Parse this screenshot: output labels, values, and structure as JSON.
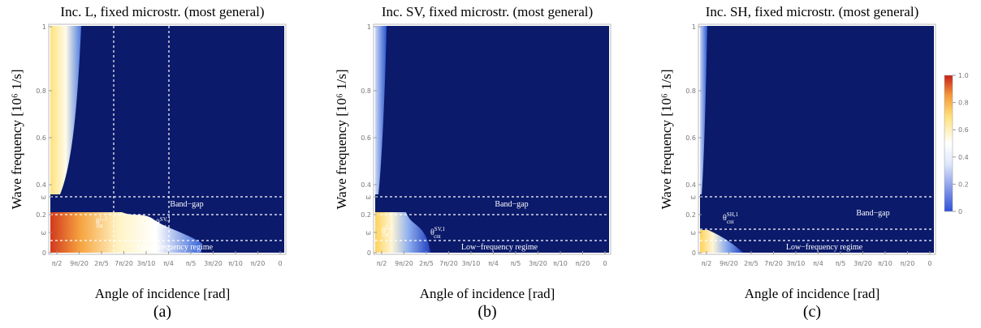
{
  "axes": {
    "y_ticks": [
      "0",
      "ω",
      "0.2",
      "ω",
      "0.4",
      "0.6",
      "0.8",
      "1"
    ],
    "x_ticks": [
      "π/2",
      "9π/20",
      "2π/5",
      "7π/20",
      "3π/10",
      "π/4",
      "π/5",
      "3π/20",
      "π/10",
      "π/20",
      "0"
    ]
  },
  "panels": [
    {
      "title": "Inc. L, fixed microstr. (most general)",
      "y_label": "Wave frequency [10⁶ 1/s]",
      "x_label": "Angle of incidence [rad]",
      "caption": "(a)",
      "band_gap": "Band−gap",
      "low_regime": "Low−frequency regime",
      "angles": [
        {
          "symbol": "θ",
          "sub": "cnt",
          "sup": "L,1"
        },
        {
          "symbol": "θ",
          "sub": "cnt",
          "sup": "SV,1"
        }
      ]
    },
    {
      "title": "Inc. SV, fixed microstr. (most general)",
      "y_label": "Wave frequency [10⁶ 1/s]",
      "x_label": "Angle of incidence [rad]",
      "caption": "(b)",
      "band_gap": "Band−gap",
      "low_regime": "Low−frequency regime",
      "angles": [
        {
          "symbol": "θ",
          "sub": "cnt",
          "sup": "L,1"
        },
        {
          "symbol": "θ",
          "sub": "cnt",
          "sup": "SV,1"
        }
      ]
    },
    {
      "title": "Inc. SH, fixed microstr. (most general)",
      "y_label": "Wave frequency [10⁶ 1/s]",
      "x_label": "Angle of incidence [rad]",
      "caption": "(c)",
      "band_gap": "Band−gap",
      "low_regime": "Low−frequency regime",
      "angles": [
        {
          "symbol": "θ",
          "sub": "cnt",
          "sup": "SH,1"
        }
      ]
    }
  ],
  "colorbar": {
    "ticks": [
      "0",
      "0.2",
      "0.4",
      "0.6",
      "0.8",
      "1.0"
    ]
  }
}
